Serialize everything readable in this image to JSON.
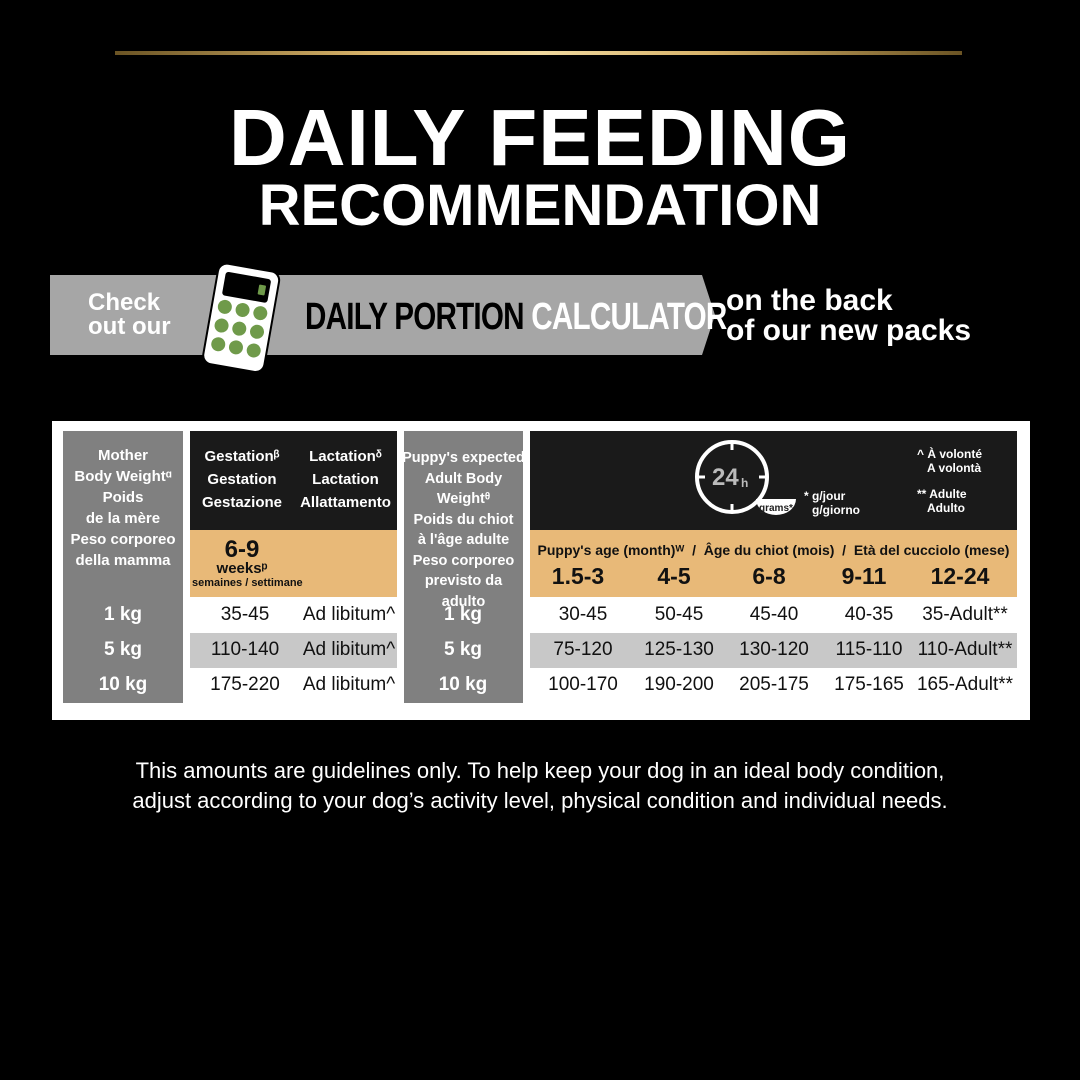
{
  "title": {
    "line1": "DAILY FEEDING",
    "line2": "RECOMMENDATION"
  },
  "banner": {
    "check_line1": "Check",
    "check_line2": "out our",
    "calc_black": "DAILY PORTION ",
    "calc_white": "CALCULATOR",
    "back_line1": "on the back",
    "back_line2": "of our new packs"
  },
  "colors": {
    "accent_gold": "#d8b36a",
    "tan": "#e8b978",
    "calculator_green": "#6f9a4a",
    "banner_gray": "#a6a6a6"
  },
  "table": {
    "mother_header": [
      "Mother",
      "Body Weightᵅ",
      "Poids",
      "de la mère",
      "Peso corporeo",
      "della mamma"
    ],
    "gestation": [
      "Gestationᵝ",
      "Gestation",
      "Gestazione"
    ],
    "lactation": [
      "Lactationᵟ",
      "Lactation",
      "Allattamento"
    ],
    "gestation_weeks": "6-9",
    "weeks_label": "weeksᵖ",
    "weeks_translations": "semaines / settimane",
    "puppy_header": [
      "Puppy's expected",
      "Adult Body Weightᶿ",
      "Poids du chiot",
      "à l'âge adulte",
      "Peso corporeo",
      "previsto da adulto"
    ],
    "clock_label": "24",
    "clock_unit": "h",
    "grams_label": "grams*",
    "grams_note": [
      "* g/jour",
      "g/giorno"
    ],
    "notes": [
      "^ À volonté",
      "A volontà",
      "** Adulte",
      "Adulto"
    ],
    "age_header": "Puppy's age (month)ᵂ  /  Âge du chiot (mois)  /  Età del cucciolo (mese)",
    "age_columns": [
      "1.5-3",
      "4-5",
      "6-8",
      "9-11",
      "12-24"
    ],
    "mother_rows": [
      {
        "weight": "1 kg",
        "gestation": "35-45",
        "lactation": "Ad libitum^"
      },
      {
        "weight": "5 kg",
        "gestation": "110-140",
        "lactation": "Ad libitum^"
      },
      {
        "weight": "10 kg",
        "gestation": "175-220",
        "lactation": "Ad libitum^"
      }
    ],
    "puppy_rows": [
      {
        "weight": "1 kg",
        "values": [
          "30-45",
          "50-45",
          "45-40",
          "40-35",
          "35-Adult**"
        ]
      },
      {
        "weight": "5 kg",
        "values": [
          "75-120",
          "125-130",
          "130-120",
          "115-110",
          "110-Adult**"
        ]
      },
      {
        "weight": "10 kg",
        "values": [
          "100-170",
          "190-200",
          "205-175",
          "175-165",
          "165-Adult**"
        ]
      }
    ]
  },
  "footer": {
    "line1": "This amounts are guidelines only. To help keep your dog in an ideal body condition,",
    "line2": "adjust according to your dog’s activity level, physical condition and individual needs."
  }
}
